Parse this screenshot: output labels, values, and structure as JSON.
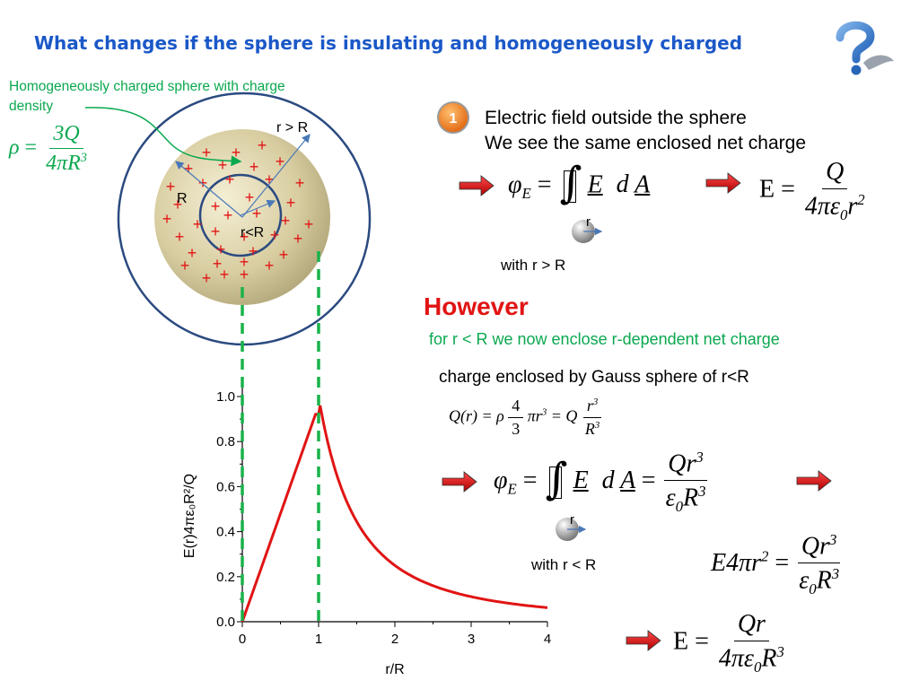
{
  "title": "What changes if the sphere is insulating and homogeneously charged",
  "question_icon": "question-mark-icon",
  "left": {
    "desc_line1": "Homogeneously charged sphere with charge",
    "desc_line2": "density",
    "rho": "ρ",
    "rho_num": "3Q",
    "rho_den_a": "4πR",
    "rho_den_exp": "3",
    "label_r_gt_R": "r > R",
    "label_R": "R",
    "label_r_lt_R": "r<R",
    "plus": "+"
  },
  "step_badge": "1",
  "outside": {
    "line1": "Electric field outside the sphere",
    "line2": "We see the same enclosed net charge",
    "flux_lhs": "φ",
    "flux_sub": "E",
    "E_vec": "E",
    "d": "d",
    "A_vec": "A",
    "r_ball": "r",
    "with": "with r > R",
    "result_lhs": "E =",
    "result_num": "Q",
    "result_den": "4πε",
    "result_den_sub": "0",
    "result_den_r": "r",
    "result_den_exp": "2"
  },
  "however": "However",
  "inside_note": "for r < R we now enclose r-dependent net charge",
  "charge_enclosed": "charge enclosed by Gauss sphere of r<R",
  "qr": {
    "lhs": "Q(r) = ρ",
    "f1_num": "4",
    "f1_den": "3",
    "mid": "πr",
    "mid_exp": "3",
    "eqQ": "= Q",
    "f2_num": "r",
    "f2_num_exp": "3",
    "f2_den": "R",
    "f2_den_exp": "3"
  },
  "inside": {
    "flux_lhs": "φ",
    "flux_sub": "E",
    "E_vec": "E",
    "d": "d",
    "A_vec": "A",
    "eq": "=",
    "num": "Qr",
    "num_exp": "3",
    "den": "ε",
    "den_sub": "0",
    "den_R": "R",
    "den_exp": "3",
    "r_ball": "r",
    "with": "with r < R",
    "e4_lhs": "E4πr",
    "e4_exp": "2",
    "final_lhs": "E =",
    "final_num": "Qr",
    "final_den": "4πε",
    "final_den_sub": "0",
    "final_den_R": "R",
    "final_den_exp": "3"
  },
  "colors": {
    "title": "#1b58c8",
    "green": "#0aa84f",
    "red": "#e11414",
    "navy": "#2b4a80",
    "badge": "#f07f18",
    "dash": "#19b34a"
  },
  "chart_data": {
    "type": "line",
    "title": "",
    "xlabel": "r/R",
    "ylabel": "E(r)4πε₀R²/Q",
    "xlim": [
      0,
      4
    ],
    "ylim": [
      0,
      1.0
    ],
    "xticks": [
      "0",
      "1",
      "2",
      "3",
      "4"
    ],
    "yticks": [
      "0.0",
      "0.2",
      "0.4",
      "0.6",
      "0.8",
      "1.0"
    ],
    "series": [
      {
        "name": "",
        "x": [
          0,
          0.5,
          1.0,
          1.25,
          1.5,
          2.0,
          2.5,
          3.0,
          3.5,
          4.0
        ],
        "y": [
          0,
          0.5,
          1.0,
          0.64,
          0.444,
          0.25,
          0.16,
          0.111,
          0.082,
          0.0625
        ]
      }
    ],
    "markers_x": [
      0,
      1
    ]
  }
}
